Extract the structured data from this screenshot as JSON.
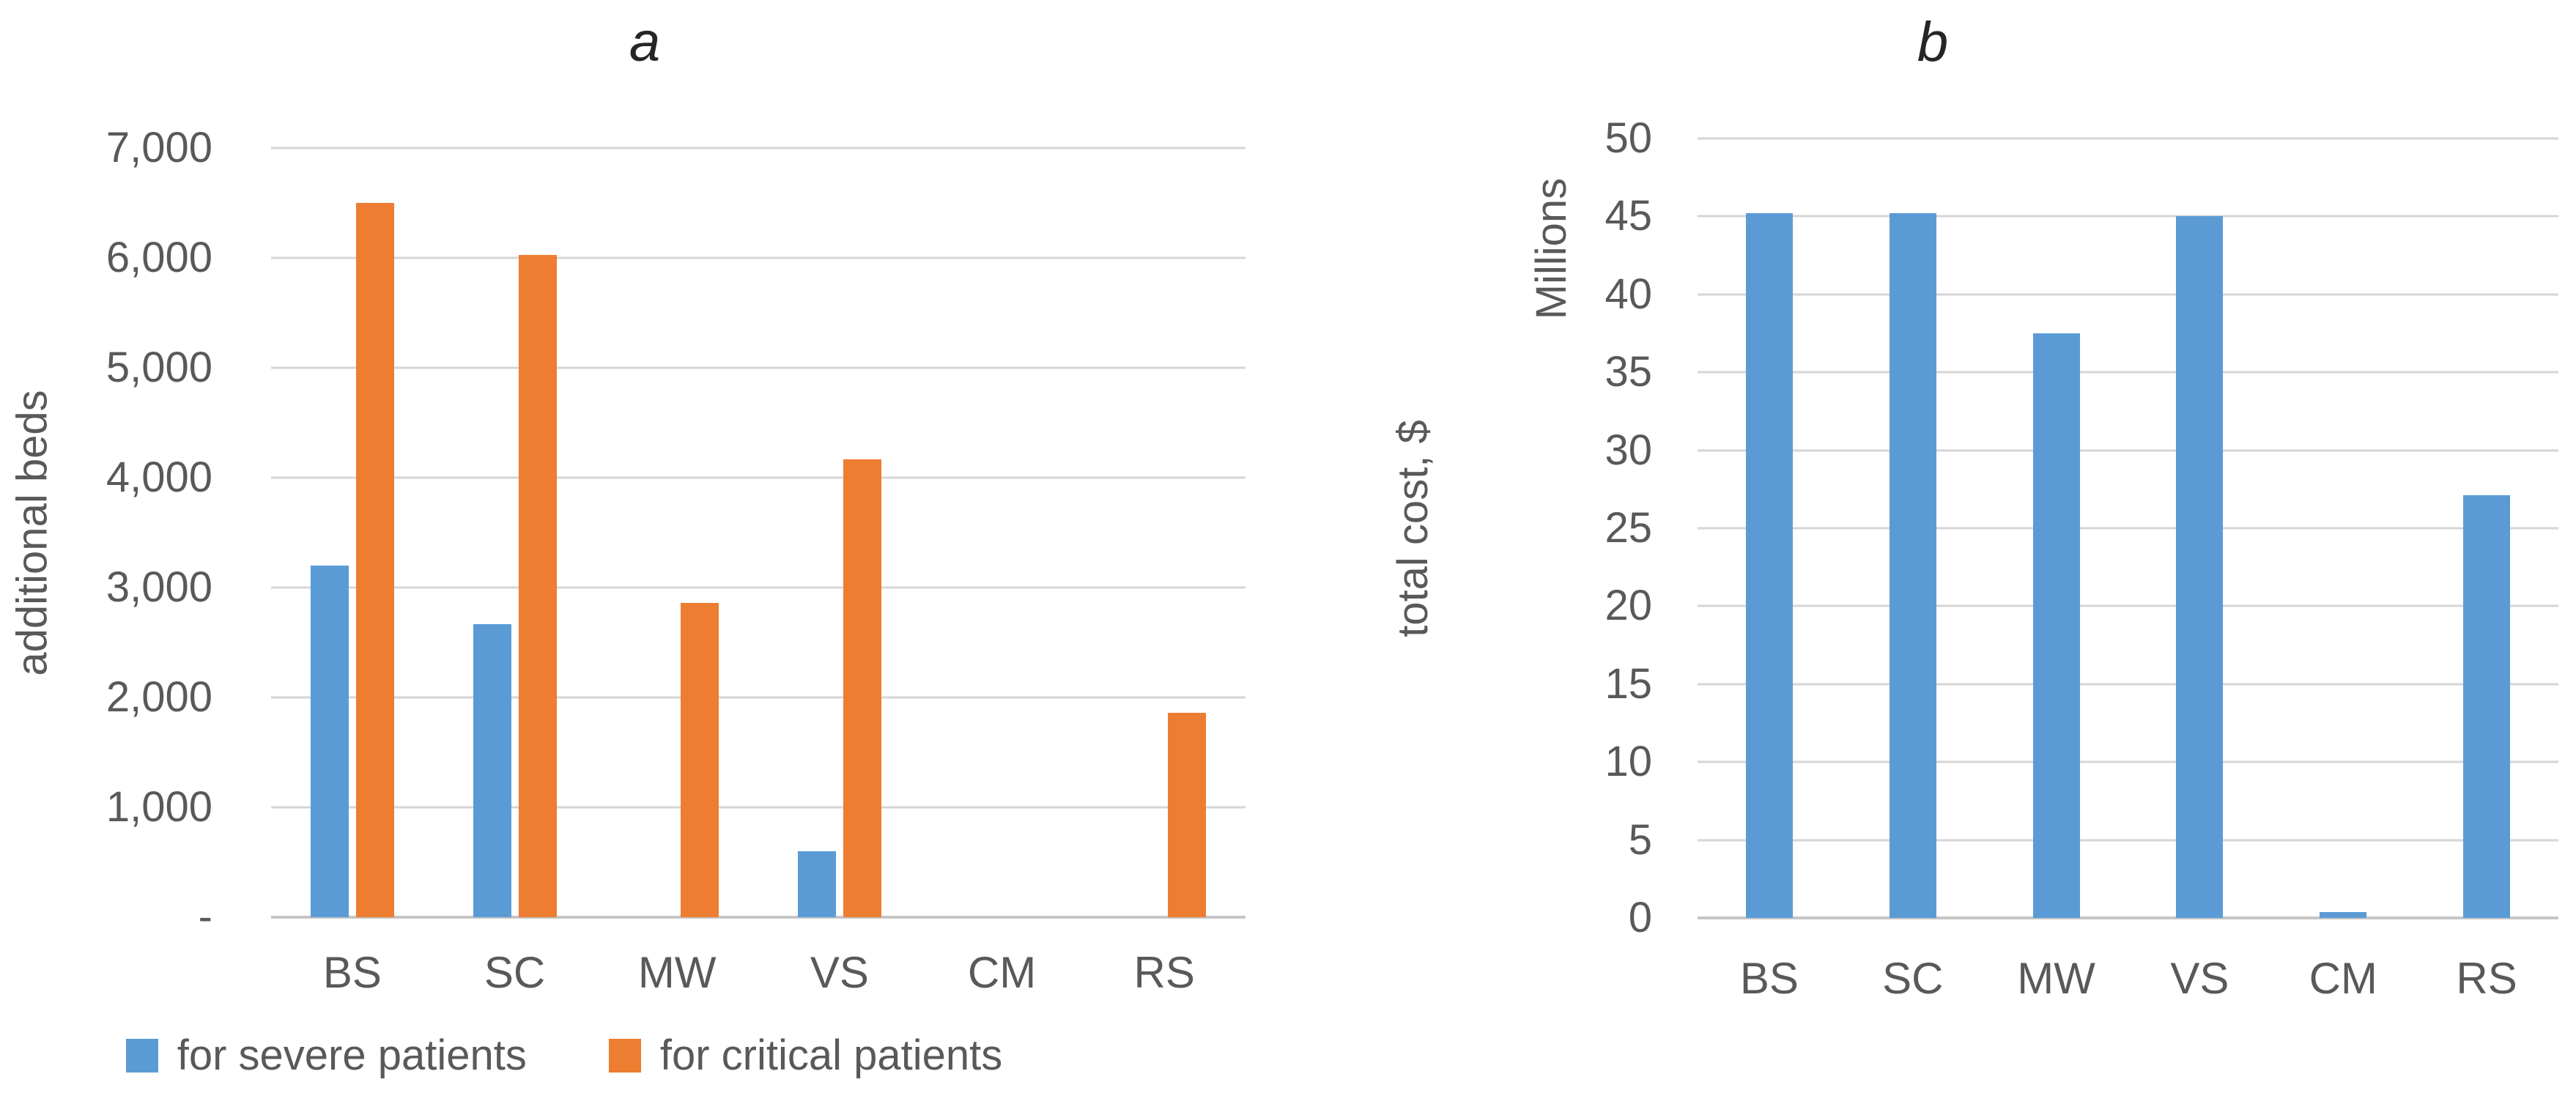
{
  "figure": {
    "background": "#FFFFFF",
    "text_color": "#595959",
    "title_color": "#262626",
    "gridline_color": "#D6D6D6",
    "axis_line_color": "#C6C6C6"
  },
  "chart_data": [
    {
      "type": "bar",
      "title": "a",
      "ylabel": "additional beds",
      "categories": [
        "BS",
        "SC",
        "MW",
        "VS",
        "CM",
        "RS"
      ],
      "series": [
        {
          "name": "for severe patients",
          "color": "#5B9BD5",
          "values": [
            3200,
            2670,
            0,
            600,
            0,
            0
          ]
        },
        {
          "name": "for critical patients",
          "color": "#ED7D31",
          "values": [
            6500,
            6030,
            2860,
            4170,
            0,
            1860
          ]
        }
      ],
      "ylim": [
        0,
        7000
      ],
      "ytick_interval": 1000,
      "ytick_labels": [
        "-",
        "1,000",
        "2,000",
        "3,000",
        "4,000",
        "5,000",
        "6,000",
        "7,000"
      ],
      "grid": true,
      "legend_position": "bottom"
    },
    {
      "type": "bar",
      "title": "b",
      "ylabel": "total cost, $",
      "ylabel_units": "Millions",
      "categories": [
        "BS",
        "SC",
        "MW",
        "VS",
        "CM",
        "RS"
      ],
      "series": [
        {
          "color": "#5B9BD5",
          "values": [
            45.2,
            45.2,
            37.5,
            45.0,
            0.4,
            27.1
          ]
        }
      ],
      "ylim": [
        0,
        50
      ],
      "ytick_interval": 5,
      "ytick_labels": [
        "0",
        "5",
        "10",
        "15",
        "20",
        "25",
        "30",
        "35",
        "40",
        "45",
        "50"
      ],
      "grid": true,
      "legend_position": "none"
    }
  ]
}
